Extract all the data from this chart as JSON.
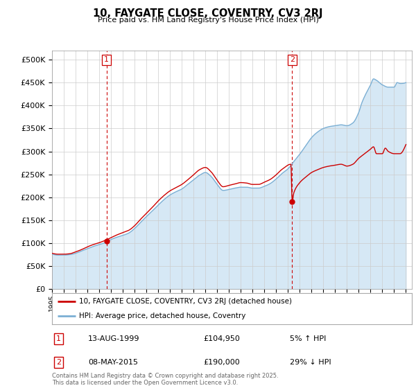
{
  "title": "10, FAYGATE CLOSE, COVENTRY, CV3 2RJ",
  "subtitle": "Price paid vs. HM Land Registry's House Price Index (HPI)",
  "ylim": [
    0,
    520000
  ],
  "yticks": [
    0,
    50000,
    100000,
    150000,
    200000,
    250000,
    300000,
    350000,
    400000,
    450000,
    500000
  ],
  "xlim_start": 1995.0,
  "xlim_end": 2025.5,
  "legend_entries": [
    "10, FAYGATE CLOSE, COVENTRY, CV3 2RJ (detached house)",
    "HPI: Average price, detached house, Coventry"
  ],
  "transaction1": {
    "label": "1",
    "date": "13-AUG-1999",
    "price": "£104,950",
    "hpi": "5% ↑ HPI",
    "year": 1999.62,
    "price_val": 104950
  },
  "transaction2": {
    "label": "2",
    "date": "08-MAY-2015",
    "price": "£190,000",
    "hpi": "29% ↓ HPI",
    "year": 2015.36,
    "price_val": 190000
  },
  "footer": "Contains HM Land Registry data © Crown copyright and database right 2025.\nThis data is licensed under the Open Government Licence v3.0.",
  "line_color_red": "#CC0000",
  "line_color_blue": "#7BAFD4",
  "fill_color_blue": "#D6E8F5",
  "grid_color": "#CCCCCC",
  "background_color": "#FFFFFF",
  "hpi_knots_x": [
    1995.0,
    1995.5,
    1996.0,
    1996.5,
    1997.0,
    1997.5,
    1998.0,
    1998.5,
    1999.0,
    1999.5,
    2000.0,
    2000.5,
    2001.0,
    2001.5,
    2002.0,
    2002.5,
    2003.0,
    2003.5,
    2004.0,
    2004.5,
    2005.0,
    2005.5,
    2006.0,
    2006.5,
    2007.0,
    2007.5,
    2008.0,
    2008.5,
    2009.0,
    2009.5,
    2010.0,
    2010.5,
    2011.0,
    2011.5,
    2012.0,
    2012.5,
    2013.0,
    2013.5,
    2014.0,
    2014.5,
    2015.0,
    2015.5,
    2016.0,
    2016.5,
    2017.0,
    2017.5,
    2018.0,
    2018.5,
    2019.0,
    2019.5,
    2020.0,
    2020.5,
    2021.0,
    2021.25,
    2021.5,
    2022.0,
    2022.25,
    2022.5,
    2023.0,
    2023.5,
    2024.0,
    2024.25,
    2024.5,
    2025.0
  ],
  "hpi_knots_y": [
    76000,
    74000,
    74000,
    75000,
    78000,
    83000,
    88000,
    93000,
    97000,
    101000,
    108000,
    113000,
    117000,
    122000,
    132000,
    145000,
    158000,
    170000,
    183000,
    195000,
    205000,
    212000,
    218000,
    228000,
    238000,
    248000,
    254000,
    245000,
    228000,
    215000,
    217000,
    220000,
    222000,
    222000,
    220000,
    220000,
    224000,
    230000,
    240000,
    252000,
    262000,
    278000,
    294000,
    312000,
    330000,
    342000,
    350000,
    354000,
    356000,
    358000,
    356000,
    362000,
    385000,
    405000,
    420000,
    445000,
    458000,
    455000,
    445000,
    440000,
    440000,
    450000,
    448000,
    450000
  ],
  "pp_knots_x": [
    1995.0,
    1995.5,
    1996.0,
    1996.5,
    1997.0,
    1997.5,
    1998.0,
    1998.5,
    1999.0,
    1999.5,
    2000.0,
    2000.5,
    2001.0,
    2001.5,
    2002.0,
    2002.5,
    2003.0,
    2003.5,
    2004.0,
    2004.5,
    2005.0,
    2005.5,
    2006.0,
    2006.5,
    2007.0,
    2007.5,
    2008.0,
    2008.5,
    2009.0,
    2009.5,
    2010.0,
    2010.5,
    2011.0,
    2011.5,
    2012.0,
    2012.5,
    2013.0,
    2013.5,
    2014.0,
    2014.5,
    2015.25,
    2015.36,
    2015.5,
    2016.0,
    2016.5,
    2017.0,
    2017.5,
    2018.0,
    2018.5,
    2019.0,
    2019.5,
    2020.0,
    2020.5,
    2021.0,
    2021.5,
    2022.0,
    2022.25,
    2022.5,
    2023.0,
    2023.25,
    2023.5,
    2024.0,
    2024.5,
    2025.0
  ],
  "pp_knots_y": [
    78000,
    76000,
    76000,
    77000,
    81000,
    86000,
    92000,
    97000,
    101000,
    106000,
    112000,
    118000,
    123000,
    128000,
    138000,
    152000,
    165000,
    178000,
    192000,
    204000,
    214000,
    221000,
    228000,
    238000,
    249000,
    260000,
    265000,
    255000,
    237000,
    223000,
    226000,
    229000,
    232000,
    231000,
    228000,
    228000,
    233000,
    239000,
    249000,
    261000,
    272000,
    190000,
    210000,
    232000,
    244000,
    254000,
    260000,
    265000,
    268000,
    270000,
    272000,
    268000,
    272000,
    285000,
    295000,
    305000,
    310000,
    295000,
    295000,
    307000,
    300000,
    295000,
    295000,
    315000
  ]
}
